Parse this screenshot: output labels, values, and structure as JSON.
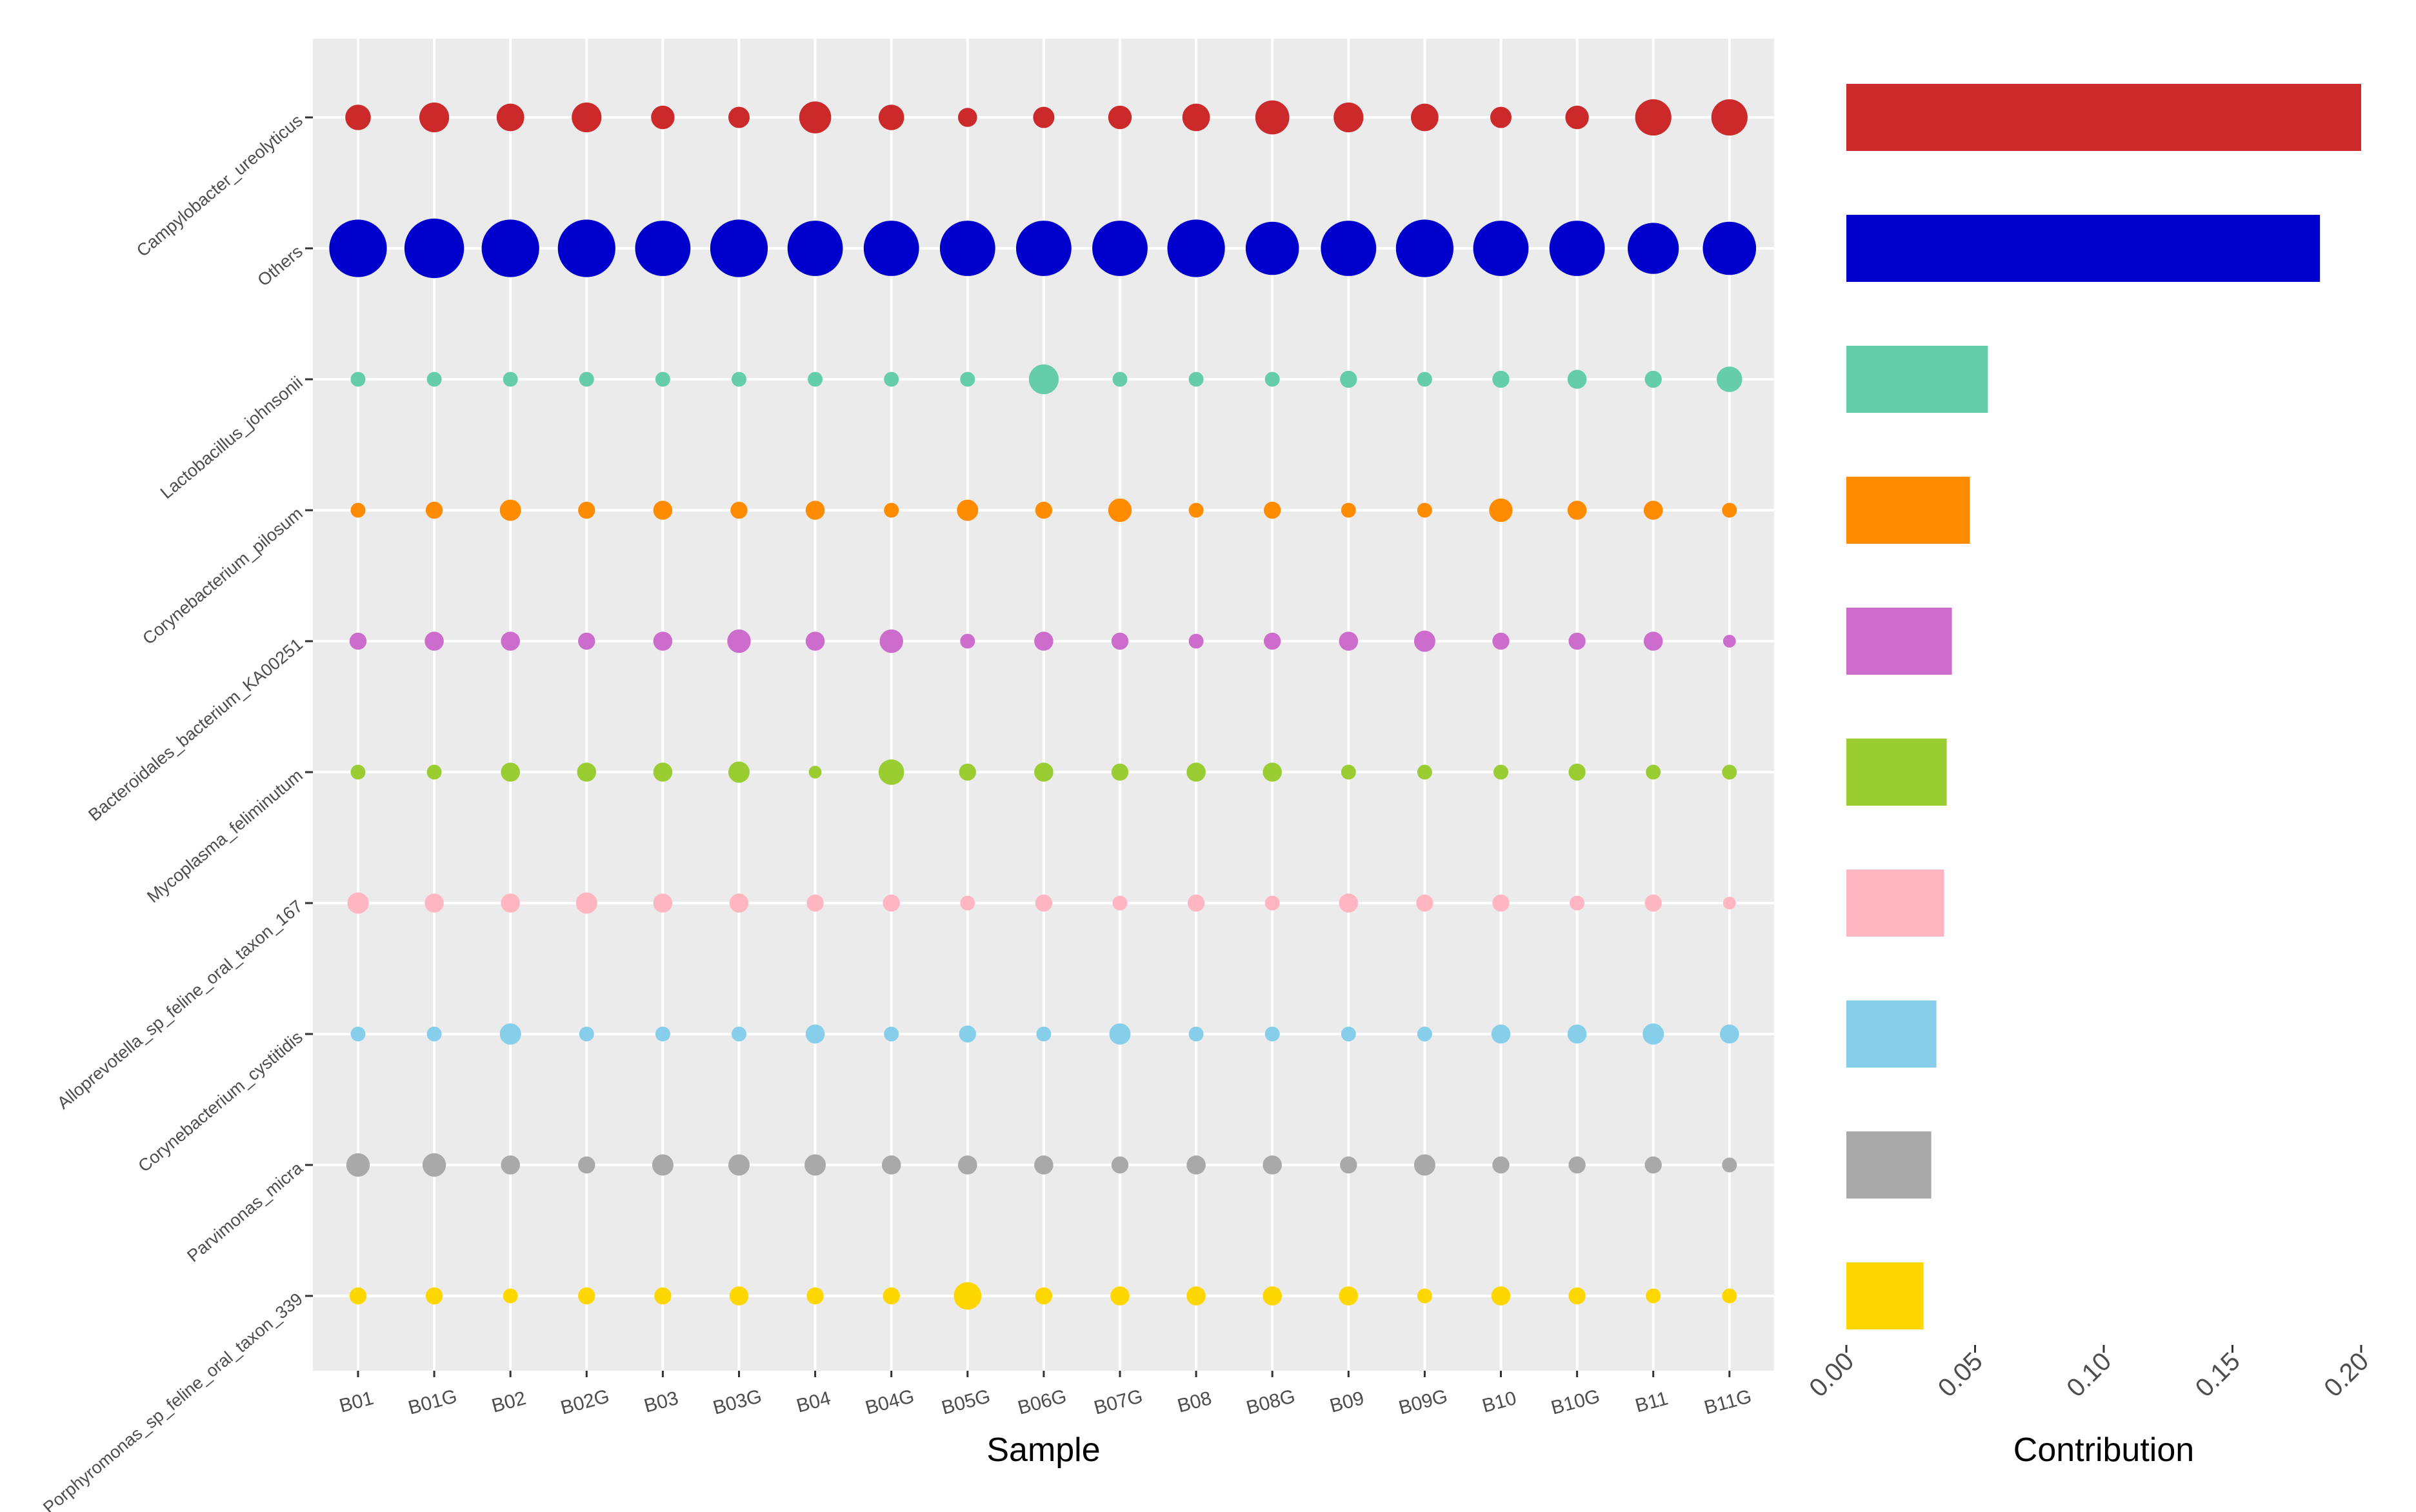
{
  "chart_data": [
    {
      "type": "scatter",
      "xlabel": "Sample",
      "ylabel": "",
      "x_categories": [
        "B01",
        "B01G",
        "B02",
        "B02G",
        "B03",
        "B03G",
        "B04",
        "B04G",
        "B05G",
        "B06G",
        "B07G",
        "B08",
        "B08G",
        "B09",
        "B09G",
        "B10",
        "B10G",
        "B11",
        "B11G"
      ],
      "y_categories": [
        "Campylobacter_ureolyticus",
        "Others",
        "Lactobacillus_johnsonii",
        "Corynebacterium_pilosum",
        "Bacteroidales_bacterium_KA00251",
        "Mycoplasma_feliminutum",
        "Alloprevotella_sp_feline_oral_taxon_167",
        "Corynebacterium_cystitidis",
        "Parvimonas_micra",
        "Porphyromonas_sp_feline_oral_taxon_339"
      ],
      "colors": [
        "#cc2a2a",
        "#0000cc",
        "#66cdaa",
        "#ff8c00",
        "#cc6ccc",
        "#9acd32",
        "#ffb6c1",
        "#87ceeb",
        "#a9a9a9",
        "#ffd700"
      ],
      "size_note": "point size proportional to abundance (relative units)",
      "series": [
        {
          "values": [
            1.2,
            1.4,
            1.3,
            1.4,
            1.1,
            1.0,
            1.5,
            1.2,
            0.9,
            1.0,
            1.1,
            1.3,
            1.6,
            1.4,
            1.3,
            1.0,
            1.1,
            1.7,
            1.7
          ]
        },
        {
          "values": [
            2.7,
            2.8,
            2.7,
            2.7,
            2.6,
            2.7,
            2.6,
            2.6,
            2.6,
            2.6,
            2.6,
            2.7,
            2.5,
            2.6,
            2.7,
            2.6,
            2.6,
            2.4,
            2.5
          ]
        },
        {
          "values": [
            0.7,
            0.7,
            0.7,
            0.7,
            0.7,
            0.7,
            0.7,
            0.7,
            0.7,
            1.4,
            0.7,
            0.7,
            0.7,
            0.8,
            0.7,
            0.8,
            0.9,
            0.8,
            1.2
          ]
        },
        {
          "values": [
            0.7,
            0.8,
            1.0,
            0.8,
            0.9,
            0.8,
            0.9,
            0.7,
            1.0,
            0.8,
            1.1,
            0.7,
            0.8,
            0.7,
            0.7,
            1.1,
            0.9,
            0.9,
            0.7
          ]
        },
        {
          "values": [
            0.8,
            0.9,
            0.9,
            0.8,
            0.9,
            1.1,
            0.9,
            1.1,
            0.7,
            0.9,
            0.8,
            0.7,
            0.8,
            0.9,
            1.0,
            0.8,
            0.8,
            0.9,
            0.6
          ]
        },
        {
          "values": [
            0.7,
            0.7,
            0.9,
            0.9,
            0.9,
            1.0,
            0.6,
            1.2,
            0.8,
            0.9,
            0.8,
            0.9,
            0.9,
            0.7,
            0.7,
            0.7,
            0.8,
            0.7,
            0.7
          ]
        },
        {
          "values": [
            1.0,
            0.9,
            0.9,
            1.0,
            0.9,
            0.9,
            0.8,
            0.8,
            0.7,
            0.8,
            0.7,
            0.8,
            0.7,
            0.9,
            0.8,
            0.8,
            0.7,
            0.8,
            0.6
          ]
        },
        {
          "values": [
            0.7,
            0.7,
            1.0,
            0.7,
            0.7,
            0.7,
            0.9,
            0.7,
            0.8,
            0.7,
            1.0,
            0.7,
            0.7,
            0.7,
            0.7,
            0.9,
            0.9,
            1.0,
            0.9
          ]
        },
        {
          "values": [
            1.1,
            1.1,
            0.9,
            0.8,
            1.0,
            1.0,
            1.0,
            0.9,
            0.9,
            0.9,
            0.8,
            0.9,
            0.9,
            0.8,
            1.0,
            0.8,
            0.8,
            0.8,
            0.7
          ]
        },
        {
          "values": [
            0.8,
            0.8,
            0.7,
            0.8,
            0.8,
            0.9,
            0.8,
            0.8,
            1.3,
            0.8,
            0.9,
            0.9,
            0.9,
            0.9,
            0.7,
            0.9,
            0.8,
            0.7,
            0.7
          ]
        }
      ]
    },
    {
      "type": "bar",
      "orientation": "horizontal",
      "xlabel": "Contribution",
      "xlim": [
        0,
        0.2
      ],
      "xticks": [
        "0.00",
        "0.05",
        "0.10",
        "0.15",
        "0.20"
      ],
      "categories": [
        "Campylobacter_ureolyticus",
        "Others",
        "Lactobacillus_johnsonii",
        "Corynebacterium_pilosum",
        "Bacteroidales_bacterium_KA00251",
        "Mycoplasma_feliminutum",
        "Alloprevotella_sp_feline_oral_taxon_167",
        "Corynebacterium_cystitidis",
        "Parvimonas_micra",
        "Porphyromonas_sp_feline_oral_taxon_339"
      ],
      "values": [
        0.2,
        0.184,
        0.055,
        0.048,
        0.041,
        0.039,
        0.038,
        0.035,
        0.033,
        0.03
      ],
      "colors": [
        "#cc2a2a",
        "#0000cc",
        "#66cdaa",
        "#ff8c00",
        "#cc6ccc",
        "#9acd32",
        "#ffb6c1",
        "#87ceeb",
        "#a9a9a9",
        "#ffd700"
      ],
      "grid": false
    }
  ]
}
